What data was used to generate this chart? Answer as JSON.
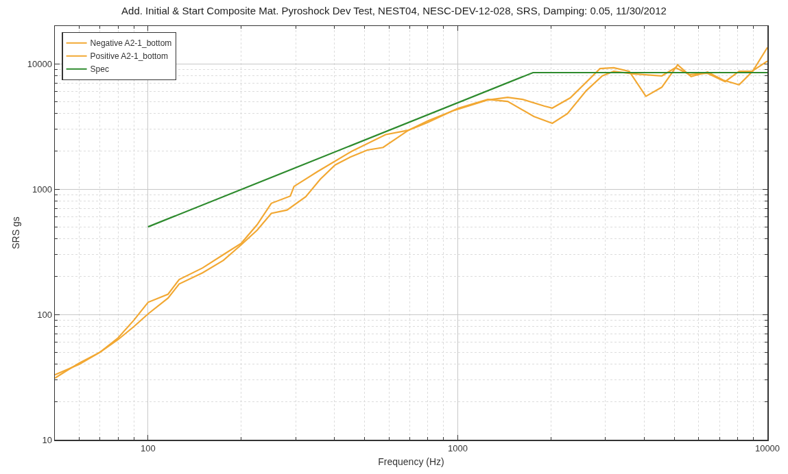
{
  "chart_data": {
    "type": "line",
    "title": "Add. Initial & Start Composite Mat. Pyroshock Dev Test, NEST04, NESC-DEV-12-028, SRS, Damping: 0.05, 11/30/2012",
    "xlabel": "Frequency (Hz)",
    "ylabel": "SRS gs",
    "log": "xy",
    "grid": true,
    "legend": "top left",
    "marker": "none",
    "line_style": "solid",
    "xlim": [
      50,
      10000
    ],
    "xticks": [
      100,
      1000,
      10000
    ],
    "ylim": [
      10,
      20000
    ],
    "yticks": [
      10,
      100,
      1000,
      10000
    ],
    "series": [
      {
        "name": "Negative A2-1_bottom",
        "color": "#f2a833",
        "x": [
          50,
          55,
          60,
          70,
          80,
          90,
          100,
          116,
          126,
          150,
          175,
          200,
          225,
          250,
          281,
          323,
          360,
          402,
          450,
          511,
          574,
          693,
          800,
          974,
          1254,
          1450,
          1620,
          1900,
          2020,
          2310,
          2880,
          3190,
          3580,
          4050,
          4560,
          5130,
          5670,
          6410,
          7200,
          8100,
          8960,
          10000
        ],
        "values": [
          31,
          36,
          41,
          50,
          63,
          80,
          101,
          135,
          175,
          215,
          270,
          360,
          470,
          640,
          680,
          870,
          1200,
          1560,
          1800,
          2050,
          2150,
          2950,
          3500,
          4250,
          5150,
          5400,
          5200,
          4600,
          4430,
          5350,
          9150,
          9300,
          8700,
          5500,
          6500,
          9800,
          7900,
          8600,
          7400,
          6800,
          8700,
          13500
        ]
      },
      {
        "name": "Positive A2-1_bottom",
        "color": "#f2a833",
        "x": [
          50,
          60,
          70,
          80,
          90,
          100,
          116,
          126,
          150,
          175,
          200,
          225,
          250,
          288,
          296,
          351,
          454,
          585,
          693,
          800,
          1000,
          1250,
          1450,
          1760,
          2020,
          2260,
          2600,
          2930,
          3190,
          3700,
          4560,
          5050,
          5600,
          6400,
          7300,
          8100,
          8900,
          10000
        ],
        "values": [
          33,
          40,
          50,
          65,
          90,
          125,
          145,
          190,
          235,
          300,
          370,
          520,
          770,
          880,
          1050,
          1370,
          2000,
          2720,
          2950,
          3400,
          4400,
          5200,
          5000,
          3800,
          3350,
          4000,
          6100,
          8000,
          8700,
          8300,
          8000,
          9300,
          8200,
          8400,
          7200,
          8700,
          8700,
          10500
        ]
      },
      {
        "name": "Spec",
        "color": "#2e8b2e",
        "x": [
          100,
          1750,
          10000
        ],
        "values": [
          500,
          8500,
          8500
        ]
      }
    ]
  }
}
